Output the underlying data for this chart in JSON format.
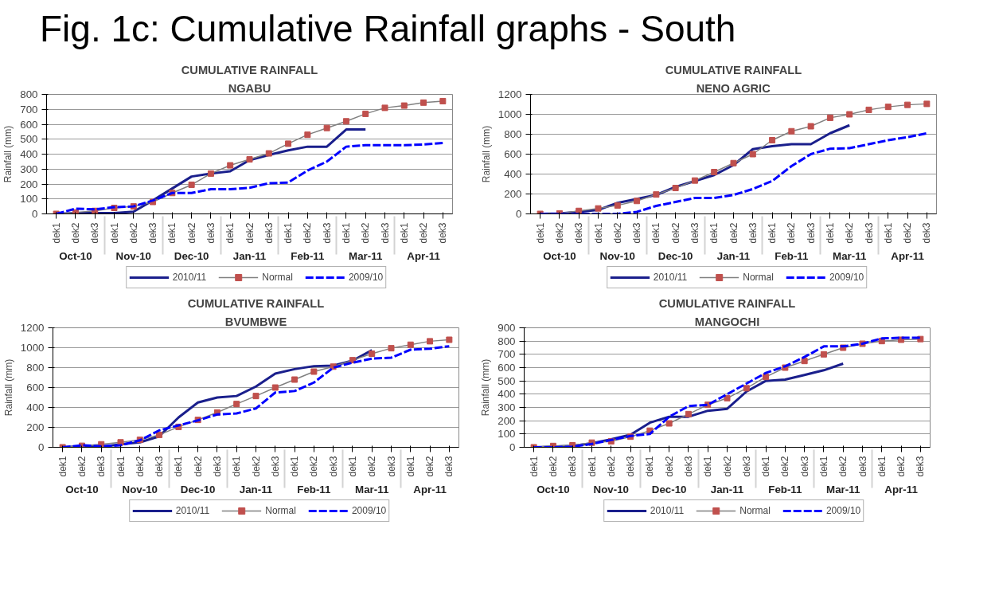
{
  "chart_data": [
    {
      "type": "line",
      "title": "CUMULATIVE RAINFALL",
      "subtitle": "NGABU",
      "ylabel": "Rainfall (mm)",
      "categories": [
        "dek1",
        "dek2",
        "dek3",
        "dek1",
        "dek2",
        "dek3",
        "dek1",
        "dek2",
        "dek3",
        "dek1",
        "dek2",
        "dek3",
        "dek1",
        "dek2",
        "dek3",
        "dek1",
        "dek2",
        "dek3",
        "dek1",
        "dek2",
        "dek3"
      ],
      "ylim": [
        0,
        800
      ],
      "yticks": [
        0,
        100,
        200,
        300,
        400,
        500,
        600,
        700,
        800
      ],
      "grid": "y",
      "legend": "bottom",
      "annotations": [
        "Fig. 1c: Cumulative Rainfall graphs -  South",
        "Oct-10",
        "Nov-10",
        "Dec-10",
        "Jan-11",
        "Feb-11",
        "Mar-11",
        "Apr-11"
      ],
      "series": [
        {
          "name": "2010/11",
          "color": "#1a1f8c",
          "line_style": "solid",
          "marker": "none",
          "values": [
            0,
            5,
            5,
            5,
            15,
            90,
            170,
            250,
            270,
            285,
            360,
            395,
            425,
            450,
            450,
            565,
            565,
            null,
            null,
            null,
            null
          ]
        },
        {
          "name": "Normal",
          "color": "#c0504d",
          "line_style": "solid",
          "marker": "square",
          "values": [
            0,
            10,
            20,
            40,
            50,
            80,
            140,
            195,
            270,
            325,
            365,
            405,
            470,
            530,
            575,
            620,
            670,
            710,
            725,
            745,
            755
          ]
        },
        {
          "name": "2009/10",
          "color": "#0000ff",
          "line_style": "dashed",
          "marker": "none",
          "values": [
            0,
            35,
            30,
            45,
            50,
            90,
            140,
            140,
            165,
            165,
            175,
            205,
            210,
            290,
            350,
            450,
            460,
            460,
            460,
            465,
            475
          ]
        }
      ]
    },
    {
      "type": "line",
      "title": "CUMULATIVE RAINFALL",
      "subtitle": "NENO AGRIC",
      "ylabel": "Rainfall (mm)",
      "categories": [
        "dek1",
        "dek2",
        "dek3",
        "dek1",
        "dek2",
        "dek3",
        "dek1",
        "dek2",
        "dek3",
        "dek1",
        "dek2",
        "dek3",
        "dek1",
        "dek2",
        "dek3",
        "dek1",
        "dek2",
        "dek3",
        "dek1",
        "dek2",
        "dek3"
      ],
      "ylim": [
        0,
        1200
      ],
      "yticks": [
        0,
        200,
        400,
        600,
        800,
        1000,
        1200
      ],
      "grid": "y",
      "legend": "bottom",
      "annotations": [
        "Oct-10",
        "Nov-10",
        "Dec-10",
        "Jan-11",
        "Feb-11",
        "Mar-11",
        "Apr-11"
      ],
      "series": [
        {
          "name": "2010/11",
          "color": "#1a1f8c",
          "line_style": "solid",
          "marker": "none",
          "values": [
            0,
            5,
            20,
            40,
            110,
            150,
            190,
            270,
            330,
            390,
            490,
            650,
            680,
            700,
            700,
            810,
            890,
            null,
            null,
            null,
            null
          ]
        },
        {
          "name": "Normal",
          "color": "#c0504d",
          "line_style": "solid",
          "marker": "square",
          "values": [
            0,
            5,
            30,
            55,
            85,
            130,
            195,
            260,
            335,
            420,
            510,
            600,
            740,
            830,
            880,
            965,
            1000,
            1045,
            1075,
            1095,
            1105
          ]
        },
        {
          "name": "2009/10",
          "color": "#0000ff",
          "line_style": "dashed",
          "marker": "none",
          "values": [
            0,
            0,
            0,
            0,
            0,
            20,
            80,
            120,
            160,
            160,
            190,
            250,
            330,
            480,
            600,
            655,
            660,
            700,
            740,
            770,
            810
          ]
        }
      ]
    },
    {
      "type": "line",
      "title": "CUMULATIVE RAINFALL",
      "subtitle": "BVUMBWE",
      "ylabel": "Rainfall (mm)",
      "categories": [
        "dek1",
        "dek2",
        "dek3",
        "dek1",
        "dek2",
        "dek3",
        "dek1",
        "dek2",
        "dek3",
        "dek1",
        "dek2",
        "dek3",
        "dek1",
        "dek2",
        "dek3",
        "dek1",
        "dek2",
        "dek3",
        "dek1",
        "dek2",
        "dek3"
      ],
      "ylim": [
        0,
        1200
      ],
      "yticks": [
        0,
        200,
        400,
        600,
        800,
        1000,
        1200
      ],
      "grid": "y",
      "legend": "bottom",
      "annotations": [
        "Oct-10",
        "Nov-10",
        "Dec-10",
        "Jan-11",
        "Feb-11",
        "Mar-11",
        "Apr-11"
      ],
      "series": [
        {
          "name": "2010/11",
          "color": "#1a1f8c",
          "line_style": "solid",
          "marker": "none",
          "values": [
            0,
            10,
            5,
            30,
            50,
            110,
            300,
            450,
            500,
            515,
            610,
            740,
            785,
            815,
            820,
            870,
            975,
            null,
            null,
            null,
            null
          ]
        },
        {
          "name": "Normal",
          "color": "#c0504d",
          "line_style": "solid",
          "marker": "square",
          "values": [
            0,
            15,
            30,
            50,
            75,
            125,
            205,
            275,
            350,
            435,
            515,
            600,
            680,
            760,
            810,
            875,
            940,
            995,
            1030,
            1065,
            1080
          ]
        },
        {
          "name": "2009/10",
          "color": "#0000ff",
          "line_style": "dashed",
          "marker": "none",
          "values": [
            0,
            20,
            10,
            20,
            70,
            170,
            220,
            270,
            330,
            340,
            390,
            550,
            565,
            650,
            800,
            850,
            890,
            900,
            980,
            990,
            1015
          ]
        }
      ]
    },
    {
      "type": "line",
      "title": "CUMULATIVE RAINFALL",
      "subtitle": "MANGOCHI",
      "ylabel": "Rainfall (mm)",
      "categories": [
        "dek1",
        "dek2",
        "dek3",
        "dek1",
        "dek2",
        "dek3",
        "dek1",
        "dek2",
        "dek3",
        "dek1",
        "dek2",
        "dek3",
        "dek1",
        "dek2",
        "dek3",
        "dek1",
        "dek2",
        "dek3",
        "dek1",
        "dek2",
        "dek3"
      ],
      "ylim": [
        0,
        900
      ],
      "yticks": [
        0,
        100,
        200,
        300,
        400,
        500,
        600,
        700,
        800,
        900
      ],
      "grid": "y",
      "legend": "bottom",
      "annotations": [
        "Oct-10",
        "Nov-10",
        "Dec-10",
        "Jan-11",
        "Feb-11",
        "Mar-11",
        "Apr-11"
      ],
      "series": [
        {
          "name": "2010/11",
          "color": "#1a1f8c",
          "line_style": "solid",
          "marker": "none",
          "values": [
            0,
            5,
            10,
            30,
            60,
            95,
            185,
            230,
            230,
            275,
            290,
            420,
            500,
            510,
            545,
            580,
            630,
            null,
            null,
            null,
            null
          ]
        },
        {
          "name": "Normal",
          "color": "#c0504d",
          "line_style": "solid",
          "marker": "square",
          "values": [
            0,
            10,
            15,
            35,
            45,
            80,
            125,
            180,
            250,
            320,
            370,
            445,
            530,
            600,
            650,
            700,
            750,
            780,
            800,
            810,
            815
          ]
        },
        {
          "name": "2009/10",
          "color": "#0000ff",
          "line_style": "dashed",
          "marker": "none",
          "values": [
            0,
            0,
            5,
            25,
            55,
            85,
            100,
            230,
            310,
            320,
            400,
            480,
            560,
            610,
            680,
            760,
            760,
            780,
            820,
            825,
            825
          ]
        }
      ]
    }
  ]
}
